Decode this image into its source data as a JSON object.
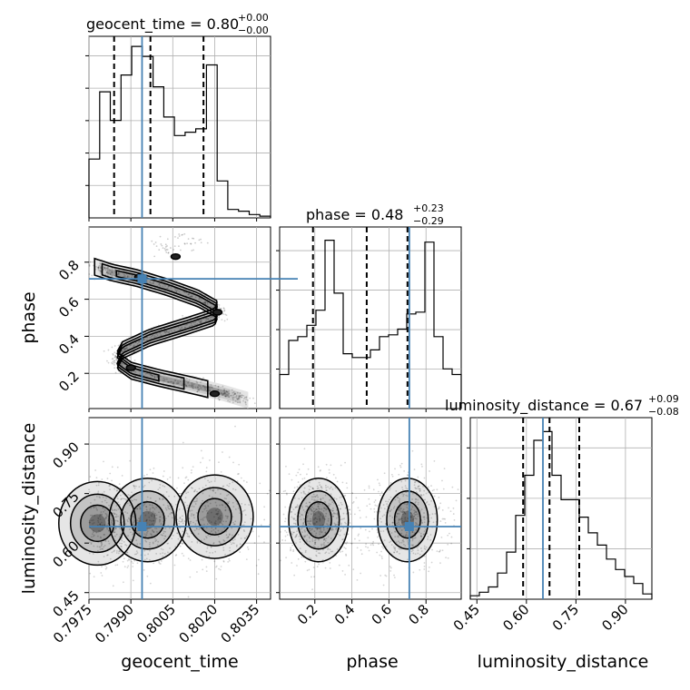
{
  "chart_data": {
    "type": "corner",
    "parameters": [
      "geocent_time",
      "phase",
      "luminosity_distance"
    ],
    "ranges": {
      "geocent_time": [
        0.7975,
        0.804
      ],
      "phase": [
        0.01,
        0.99
      ],
      "luminosity_distance": [
        0.43,
        0.98
      ]
    },
    "truths": {
      "geocent_time": 0.7994,
      "phase": 0.71,
      "luminosity_distance": 0.65
    },
    "truth_color": "#4682b4",
    "marginals": [
      {
        "parameter": "geocent_time",
        "title": {
          "base": "geocent_time = 0.80",
          "sup": "+0.00",
          "sub": "−0.00"
        },
        "quantiles": [
          0.7984,
          0.7997,
          0.8016
        ],
        "counts": [
          35,
          75,
          58,
          85,
          102,
          96,
          78,
          60,
          49,
          51,
          53,
          91,
          22,
          5,
          4,
          2,
          1
        ],
        "ylim": [
          0,
          108
        ]
      },
      {
        "parameter": "phase",
        "title": {
          "base": "phase = 0.48",
          "sup": "+0.23",
          "sub": "−0.29"
        },
        "quantiles": [
          0.19,
          0.48,
          0.7
        ],
        "counts": [
          18,
          36,
          38,
          44,
          52,
          89,
          61,
          29,
          27,
          27,
          31,
          38,
          39,
          42,
          50,
          51,
          88,
          38,
          21,
          18
        ],
        "ylim": [
          0,
          96
        ]
      },
      {
        "parameter": "luminosity_distance",
        "title": {
          "base": "luminosity_distance = 0.67",
          "sup": "+0.09",
          "sub": "−0.08"
        },
        "quantiles": [
          0.59,
          0.67,
          0.76
        ],
        "counts": [
          2,
          4,
          7,
          15,
          27,
          48,
          71,
          91,
          96,
          71,
          57,
          57,
          47,
          38,
          31,
          23,
          17,
          13,
          9,
          3
        ],
        "ylim": [
          0,
          104
        ]
      }
    ],
    "ticks": {
      "geocent_time": [
        "0.7975",
        "0.7990",
        "0.8005",
        "0.8020",
        "0.8035"
      ],
      "phase": [
        "0.2",
        "0.4",
        "0.6",
        "0.8"
      ],
      "luminosity_distance": [
        "0.45",
        "0.60",
        "0.75",
        "0.90"
      ]
    },
    "axis_labels": {
      "x": [
        "geocent_time",
        "phase",
        "luminosity_distance"
      ],
      "y": [
        "phase",
        "luminosity_distance"
      ]
    },
    "pairs": [
      {
        "x": "geocent_time",
        "y": "phase",
        "structure": "s-shaped ridge: phase 0.77 at 0.7978, 0.53 at 0.8022, 0.27 at 0.7988, 0.10 at 0.8022"
      },
      {
        "x": "geocent_time",
        "y": "luminosity_distance",
        "peaks": [
          [
            0.7978,
            0.66
          ],
          [
            0.7996,
            0.67
          ],
          [
            0.802,
            0.68
          ]
        ]
      },
      {
        "x": "phase",
        "y": "luminosity_distance",
        "peaks": [
          [
            0.22,
            0.67
          ],
          [
            0.7,
            0.67
          ]
        ]
      }
    ],
    "grid": true
  }
}
